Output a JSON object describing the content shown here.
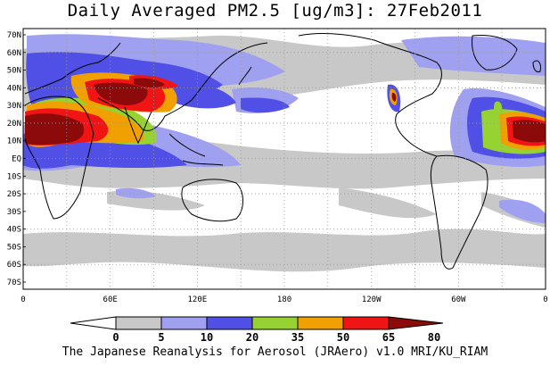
{
  "title": "Daily Averaged PM2.5 [ug/m3]: 27Feb2011",
  "lat_labels": [
    "70N",
    "60N",
    "50N",
    "40N",
    "30N",
    "20N",
    "10N",
    "EQ",
    "10S",
    "20S",
    "30S",
    "40S",
    "50S",
    "60S",
    "70S"
  ],
  "lon_labels": [
    "0",
    "60E",
    "120E",
    "180",
    "120W",
    "60W",
    "0"
  ],
  "colorbar": {
    "boundaries": [
      "0",
      "5",
      "10",
      "20",
      "35",
      "50",
      "65",
      "80"
    ],
    "colors": [
      "#ffffff",
      "#c8c8c8",
      "#a0a0f0",
      "#5050e6",
      "#96d232",
      "#f0a000",
      "#f01414",
      "#8c0a0a"
    ]
  },
  "credit": "The Japanese Reanalysis for Aerosol (JRAero) v1.0 MRI/KU_RIAM"
}
